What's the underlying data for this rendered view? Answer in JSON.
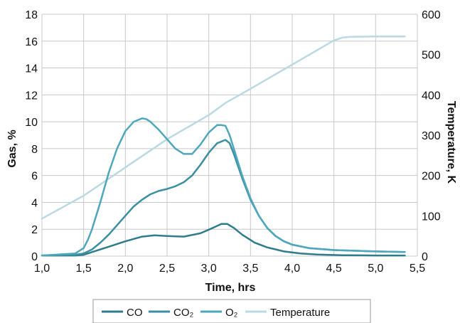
{
  "chart_data": {
    "type": "line",
    "xlabel": "Time, hrs",
    "ylabel": "Gas, %",
    "y2label": "Temperature, K",
    "xlim": [
      1.0,
      5.5
    ],
    "ylim": [
      0,
      18
    ],
    "y2lim": [
      0,
      600
    ],
    "x_ticks": [
      "1,0",
      "1,5",
      "2,0",
      "2,5",
      "3,0",
      "3,5",
      "4,0",
      "4,5",
      "5,0",
      "5,5"
    ],
    "y_ticks": [
      "0",
      "2",
      "4",
      "6",
      "8",
      "10",
      "12",
      "14",
      "16",
      "18"
    ],
    "y2_ticks": [
      "0",
      "100",
      "200",
      "300",
      "400",
      "500",
      "600"
    ],
    "grid": true,
    "legend_position": "bottom",
    "legend": [
      "CO",
      "CO₂",
      "O₂",
      "Temperature"
    ],
    "series": [
      {
        "name": "CO",
        "axis": "left",
        "color": "#2f7d8c",
        "x": [
          1.0,
          1.4,
          1.5,
          1.6,
          1.8,
          2.0,
          2.2,
          2.35,
          2.5,
          2.7,
          2.9,
          3.05,
          3.15,
          3.22,
          3.3,
          3.4,
          3.55,
          3.7,
          3.9,
          4.1,
          4.3,
          4.6,
          5.0,
          5.35
        ],
        "values": [
          0.05,
          0.05,
          0.1,
          0.3,
          0.7,
          1.1,
          1.45,
          1.55,
          1.5,
          1.45,
          1.7,
          2.1,
          2.4,
          2.4,
          2.1,
          1.6,
          1.0,
          0.65,
          0.35,
          0.2,
          0.12,
          0.07,
          0.05,
          0.05
        ]
      },
      {
        "name": "CO₂",
        "axis": "left",
        "color": "#3a8fa0",
        "x": [
          1.0,
          1.4,
          1.5,
          1.6,
          1.7,
          1.8,
          1.9,
          2.0,
          2.1,
          2.2,
          2.3,
          2.4,
          2.5,
          2.6,
          2.7,
          2.8,
          2.9,
          3.0,
          3.1,
          3.2,
          3.25,
          3.3,
          3.4,
          3.5,
          3.6,
          3.7,
          3.8,
          3.9,
          4.0,
          4.2,
          4.5,
          5.0,
          5.35
        ],
        "values": [
          0.05,
          0.1,
          0.2,
          0.5,
          1.0,
          1.6,
          2.3,
          3.0,
          3.7,
          4.2,
          4.6,
          4.85,
          5.0,
          5.2,
          5.5,
          6.0,
          6.8,
          7.7,
          8.4,
          8.65,
          8.4,
          7.6,
          5.8,
          4.2,
          3.0,
          2.1,
          1.5,
          1.1,
          0.85,
          0.6,
          0.45,
          0.35,
          0.3
        ]
      },
      {
        "name": "O₂",
        "axis": "left",
        "color": "#4ea7bc",
        "x": [
          1.0,
          1.4,
          1.5,
          1.55,
          1.6,
          1.7,
          1.8,
          1.9,
          2.0,
          2.1,
          2.2,
          2.25,
          2.3,
          2.4,
          2.5,
          2.6,
          2.7,
          2.8,
          2.9,
          3.0,
          3.1,
          3.15,
          3.2,
          3.25,
          3.3,
          3.4,
          3.5,
          3.6,
          3.7,
          3.8,
          3.9,
          4.0,
          4.2,
          4.5,
          5.0,
          5.35
        ],
        "values": [
          0.05,
          0.2,
          0.6,
          1.2,
          2.0,
          4.0,
          6.2,
          8.0,
          9.3,
          10.0,
          10.25,
          10.2,
          10.0,
          9.4,
          8.7,
          8.0,
          7.6,
          7.6,
          8.3,
          9.2,
          9.75,
          9.75,
          9.7,
          9.0,
          8.0,
          6.0,
          4.3,
          3.0,
          2.1,
          1.5,
          1.1,
          0.85,
          0.6,
          0.45,
          0.35,
          0.3
        ]
      },
      {
        "name": "Temperature",
        "axis": "right",
        "color": "#b9d9e3",
        "x": [
          1.0,
          1.5,
          2.0,
          2.5,
          3.0,
          3.2,
          3.5,
          4.0,
          4.5,
          4.6,
          4.7,
          5.0,
          5.35
        ],
        "values": [
          93,
          150,
          220,
          290,
          350,
          380,
          415,
          475,
          535,
          542,
          544,
          545,
          545
        ]
      }
    ]
  }
}
